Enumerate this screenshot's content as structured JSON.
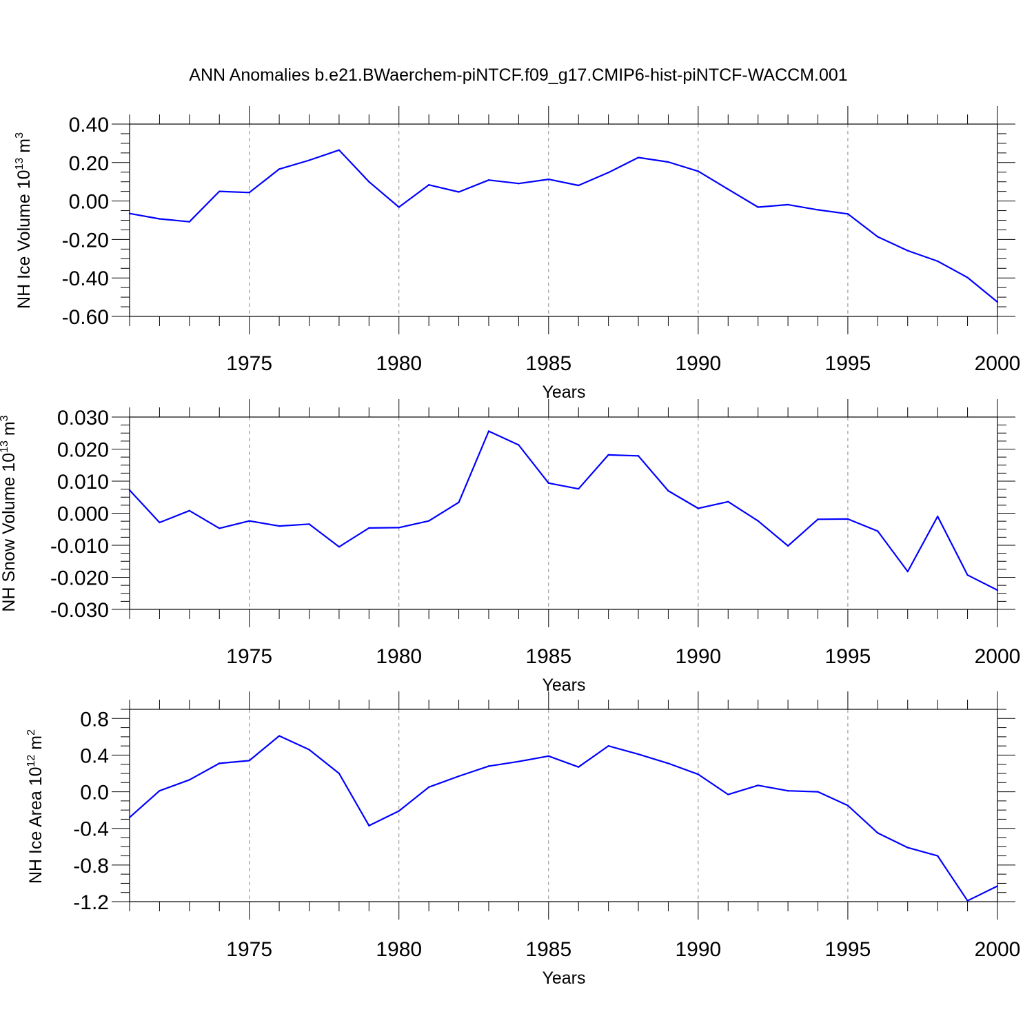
{
  "title": "ANN Anomalies b.e21.BWaerchem-piNTCF.f09_g17.CMIP6-hist-piNTCF-WACCM.001",
  "colors": {
    "line": "#0000ff",
    "grid": "#888888",
    "axis": "#000000"
  },
  "chart_data": [
    {
      "type": "line",
      "id": "ice-volume",
      "xlabel": "Years",
      "ylabel": {
        "main": "NH Ice Volume 10",
        "exp": "13",
        "unit": " m",
        "unit_exp": "3"
      },
      "xlim": [
        1971,
        2000
      ],
      "ylim": [
        -0.6,
        0.4
      ],
      "x_ticks": [
        1975,
        1980,
        1985,
        1990,
        1995,
        2000
      ],
      "y_ticks": [
        -0.6,
        -0.4,
        -0.2,
        0.0,
        0.2,
        0.4
      ],
      "y_tick_labels": [
        "-0.60",
        "-0.40",
        "-0.20",
        "0.00",
        "0.20",
        "0.40"
      ],
      "x": [
        1971,
        1972,
        1973,
        1974,
        1975,
        1976,
        1977,
        1978,
        1979,
        1980,
        1981,
        1982,
        1983,
        1984,
        1985,
        1986,
        1987,
        1988,
        1989,
        1990,
        1991,
        1992,
        1993,
        1994,
        1995,
        1996,
        1997,
        1998,
        1999,
        2000
      ],
      "values": [
        -0.065,
        -0.093,
        -0.108,
        0.05,
        0.044,
        0.166,
        0.212,
        0.265,
        0.1,
        -0.032,
        0.084,
        0.047,
        0.109,
        0.091,
        0.113,
        0.081,
        0.148,
        0.226,
        0.203,
        0.155,
        0.061,
        -0.032,
        -0.019,
        -0.046,
        -0.067,
        -0.186,
        -0.258,
        -0.313,
        -0.398,
        -0.525
      ]
    },
    {
      "type": "line",
      "id": "snow-volume",
      "xlabel": "Years",
      "ylabel": {
        "main": "NH Snow Volume 10",
        "exp": "13",
        "unit": " m",
        "unit_exp": "3"
      },
      "xlim": [
        1971,
        2000
      ],
      "ylim": [
        -0.03,
        0.03
      ],
      "x_ticks": [
        1975,
        1980,
        1985,
        1990,
        1995,
        2000
      ],
      "y_ticks": [
        -0.03,
        -0.02,
        -0.01,
        0.0,
        0.01,
        0.02,
        0.03
      ],
      "y_tick_labels": [
        "-0.030",
        "-0.020",
        "-0.010",
        "0.000",
        "0.010",
        "0.020",
        "0.030"
      ],
      "x": [
        1971,
        1972,
        1973,
        1974,
        1975,
        1976,
        1977,
        1978,
        1979,
        1980,
        1981,
        1982,
        1983,
        1984,
        1985,
        1986,
        1987,
        1988,
        1989,
        1990,
        1991,
        1992,
        1993,
        1994,
        1995,
        1996,
        1997,
        1998,
        1999,
        2000
      ],
      "values": [
        0.0072,
        -0.0029,
        0.0008,
        -0.0047,
        -0.0024,
        -0.004,
        -0.0034,
        -0.0105,
        -0.0046,
        -0.0045,
        -0.0024,
        0.0034,
        0.0256,
        0.0213,
        0.0094,
        0.0076,
        0.0182,
        0.0179,
        0.007,
        0.0015,
        0.0036,
        -0.0024,
        -0.0102,
        -0.0019,
        -0.0018,
        -0.0056,
        -0.0182,
        -0.001,
        -0.0193,
        -0.024
      ]
    },
    {
      "type": "line",
      "id": "ice-area",
      "xlabel": "Years",
      "ylabel": {
        "main": "NH Ice Area 10",
        "exp": "12",
        "unit": " m",
        "unit_exp": "2"
      },
      "xlim": [
        1971,
        2000
      ],
      "ylim": [
        -1.2,
        0.9
      ],
      "x_ticks": [
        1975,
        1980,
        1985,
        1990,
        1995,
        2000
      ],
      "y_ticks": [
        -1.2,
        -0.8,
        -0.4,
        0.0,
        0.4,
        0.8
      ],
      "y_tick_labels": [
        "-1.2",
        "-0.8",
        "-0.4",
        "0.0",
        "0.4",
        "0.8"
      ],
      "x": [
        1971,
        1972,
        1973,
        1974,
        1975,
        1976,
        1977,
        1978,
        1979,
        1980,
        1981,
        1982,
        1983,
        1984,
        1985,
        1986,
        1987,
        1988,
        1989,
        1990,
        1991,
        1992,
        1993,
        1994,
        1995,
        1996,
        1997,
        1998,
        1999,
        2000
      ],
      "values": [
        -0.28,
        0.01,
        0.13,
        0.31,
        0.34,
        0.61,
        0.46,
        0.2,
        -0.37,
        -0.21,
        0.05,
        0.17,
        0.28,
        0.33,
        0.39,
        0.27,
        0.5,
        0.41,
        0.31,
        0.19,
        -0.03,
        0.07,
        0.01,
        0.0,
        -0.15,
        -0.45,
        -0.61,
        -0.7,
        -1.19,
        -1.03
      ]
    }
  ]
}
